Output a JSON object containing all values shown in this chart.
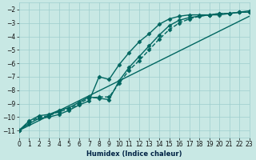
{
  "xlabel": "Humidex (Indice chaleur)",
  "background_color": "#c8e8e4",
  "grid_color": "#9ecece",
  "line_color": "#006660",
  "xlim": [
    0,
    23
  ],
  "ylim": [
    -11.5,
    -1.5
  ],
  "xticks": [
    0,
    1,
    2,
    3,
    4,
    5,
    6,
    7,
    8,
    9,
    10,
    11,
    12,
    13,
    14,
    15,
    16,
    17,
    18,
    19,
    20,
    21,
    22,
    23
  ],
  "yticks": [
    -11,
    -10,
    -9,
    -8,
    -7,
    -6,
    -5,
    -4,
    -3,
    -2
  ],
  "lines": [
    {
      "x": [
        0,
        23
      ],
      "y": [
        -11,
        -2.5
      ],
      "marker": null,
      "markersize": 0,
      "linewidth": 1.0,
      "linestyle": "-"
    },
    {
      "x": [
        0,
        1,
        2,
        3,
        4,
        5,
        6,
        7,
        8,
        9,
        10,
        11,
        12,
        13,
        14,
        15,
        16,
        17,
        18,
        19,
        20,
        21,
        22,
        23
      ],
      "y": [
        -11,
        -10.5,
        -10.1,
        -10.0,
        -9.8,
        -9.5,
        -9.1,
        -8.8,
        -7.0,
        -7.2,
        -6.1,
        -5.2,
        -4.4,
        -3.8,
        -3.1,
        -2.7,
        -2.5,
        -2.4,
        -2.4,
        -2.4,
        -2.3,
        -2.3,
        -2.2,
        -2.2
      ],
      "marker": "D",
      "markersize": 2.5,
      "linewidth": 1.0,
      "linestyle": "-"
    },
    {
      "x": [
        0,
        1,
        2,
        3,
        4,
        5,
        6,
        7,
        8,
        9,
        10,
        11,
        12,
        13,
        14,
        15,
        16,
        17,
        18,
        19,
        20,
        21,
        22,
        23
      ],
      "y": [
        -11,
        -10.4,
        -10.0,
        -9.9,
        -9.6,
        -9.4,
        -9.0,
        -8.6,
        -8.5,
        -8.5,
        -7.5,
        -6.5,
        -5.8,
        -5.0,
        -4.2,
        -3.5,
        -3.0,
        -2.7,
        -2.5,
        -2.4,
        -2.3,
        -2.3,
        -2.2,
        -2.2
      ],
      "marker": "D",
      "markersize": 2.5,
      "linewidth": 1.0,
      "linestyle": "--"
    },
    {
      "x": [
        0,
        1,
        2,
        3,
        4,
        5,
        6,
        7,
        8,
        9,
        10,
        11,
        12,
        13,
        14,
        15,
        16,
        17,
        18,
        19,
        20,
        21,
        22,
        23
      ],
      "y": [
        -11,
        -10.3,
        -9.9,
        -9.8,
        -9.5,
        -9.3,
        -8.9,
        -8.5,
        -8.6,
        -8.7,
        -7.3,
        -6.3,
        -5.5,
        -4.7,
        -3.9,
        -3.2,
        -2.8,
        -2.6,
        -2.5,
        -2.4,
        -2.4,
        -2.3,
        -2.2,
        -2.1
      ],
      "marker": "D",
      "markersize": 2.5,
      "linewidth": 1.0,
      "linestyle": "-"
    }
  ]
}
